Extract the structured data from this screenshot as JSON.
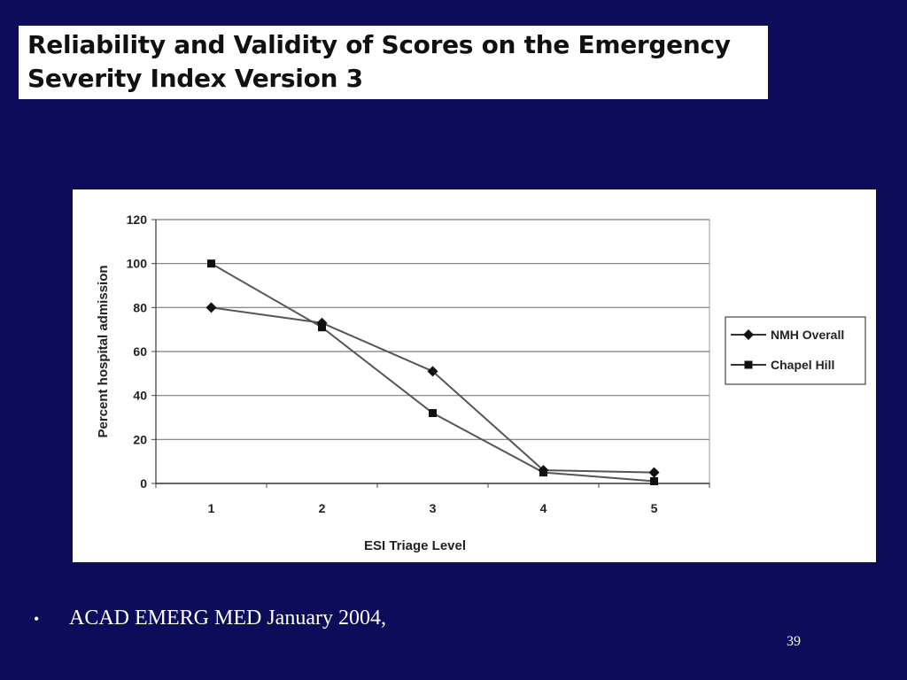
{
  "slide": {
    "title_line1": "Reliability and Validity of Scores on the Emergency",
    "title_line2": "Severity Index Version 3",
    "bullet_symbol": "•",
    "citation": "ACAD EMERG MED January 2004,",
    "page_number": "39",
    "background_color": "#0c0c5a"
  },
  "chart_data": {
    "type": "line",
    "title": "",
    "xlabel": "ESI Triage Level",
    "ylabel": "Percent hospital admission",
    "categories": [
      "1",
      "2",
      "3",
      "4",
      "5"
    ],
    "ylim": [
      0,
      120
    ],
    "yticks": [
      "0",
      "20",
      "40",
      "60",
      "80",
      "100",
      "120"
    ],
    "grid": true,
    "legend_position": "right",
    "series": [
      {
        "name": "NMH Overall",
        "marker": "diamond",
        "values": [
          80,
          73,
          51,
          6,
          5
        ]
      },
      {
        "name": "Chapel Hill",
        "marker": "square",
        "values": [
          100,
          71,
          32,
          5,
          1
        ]
      }
    ]
  }
}
